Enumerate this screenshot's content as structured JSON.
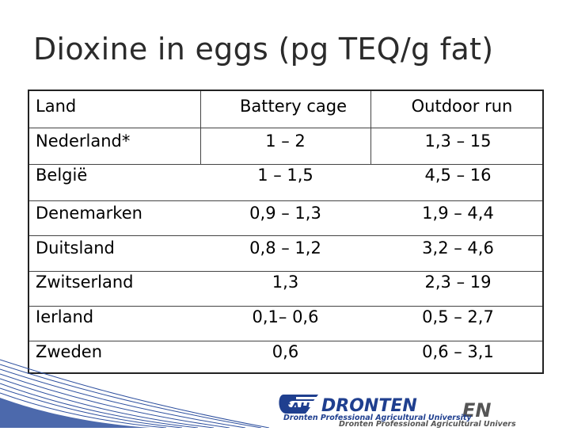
{
  "slide": {
    "title": "Dioxine in eggs (pg TEQ/g fat)"
  },
  "table": {
    "headers": [
      "Land",
      "Battery cage",
      "Outdoor run"
    ],
    "rows": [
      [
        "Nederland*",
        "1 – 2",
        "1,3 – 15"
      ],
      [
        "België",
        "1 – 1,5",
        "4,5 – 16"
      ],
      [
        "Denemarken",
        "0,9 – 1,3",
        "1,9 – 4,4"
      ],
      [
        "Duitsland",
        "0,8 – 1,2",
        "3,2 – 4,6"
      ],
      [
        "Zwitserland",
        "1,3",
        "2,3 – 19"
      ],
      [
        "Ierland",
        "0,1– 0,6",
        "0,5 – 2,7"
      ],
      [
        "Zweden",
        "0,6",
        "0,6 – 3,1"
      ]
    ]
  },
  "footer": {
    "logo_text": "DRONTEN",
    "logo_prefix": "CAH",
    "tagline": "Dronten Professional Agricultural University",
    "ghost_text": "EN",
    "ghost_tagline": "Dronten Professional Agricultural University"
  },
  "colors": {
    "logo_blue": "#1f3f8f",
    "stripe_blue": "#2d4f9e"
  }
}
